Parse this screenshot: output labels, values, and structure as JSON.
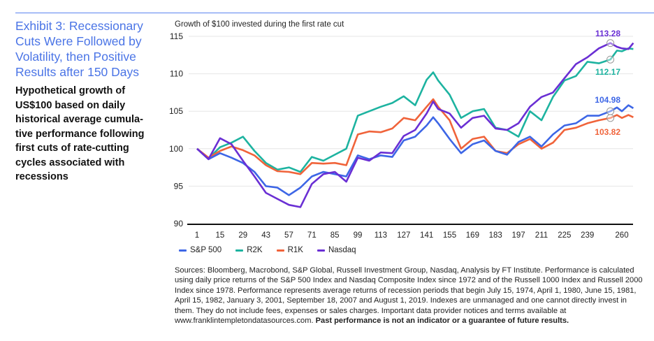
{
  "header": {
    "title": "Exhibit 3: Recessionary Cuts Were Followed by Volatility, then Positive Results after 150 Days",
    "subtitle": "Hypothetical growth of US$100 based on daily historical average cumula-tive performance following first cuts of rate-cutting cycles associated with recessions"
  },
  "chart_data": {
    "type": "line",
    "title": "Growth of $100 invested during the first rate cut",
    "xlabel": "",
    "ylabel": "",
    "ylim": [
      90,
      115
    ],
    "yticks": [
      "90",
      "95",
      "100",
      "105",
      "110",
      "115"
    ],
    "xticks": [
      "1",
      "15",
      "29",
      "43",
      "57",
      "71",
      "85",
      "99",
      "113",
      "127",
      "141",
      "155",
      "169",
      "183",
      "197",
      "211",
      "225",
      "239",
      "260"
    ],
    "xtick_values": [
      1,
      15,
      29,
      43,
      57,
      71,
      85,
      99,
      113,
      127,
      141,
      155,
      169,
      183,
      197,
      211,
      225,
      239,
      260
    ],
    "grid": "horizontal",
    "legend_position": "bottom-left",
    "x": [
      1,
      8,
      15,
      22,
      29,
      36,
      43,
      50,
      57,
      64,
      71,
      78,
      85,
      92,
      99,
      106,
      113,
      120,
      127,
      134,
      141,
      145,
      148,
      155,
      162,
      169,
      176,
      183,
      190,
      197,
      204,
      211,
      218,
      225,
      232,
      239,
      246,
      253,
      257,
      260,
      264,
      267
    ],
    "series": [
      {
        "name": "S&P 500",
        "color": "#3d66e6",
        "end_label": "104.98",
        "values": [
          100,
          98.6,
          99.4,
          98.8,
          98.1,
          96.9,
          95,
          94.8,
          93.8,
          94.8,
          96.3,
          96.9,
          96.6,
          96.3,
          99.1,
          98.6,
          99.1,
          98.9,
          101.1,
          101.6,
          103.1,
          104.2,
          103.4,
          101.3,
          99.4,
          100.6,
          101.1,
          99.7,
          99.2,
          100.9,
          101.6,
          100.3,
          101.9,
          103.1,
          103.4,
          104.4,
          104.4,
          105,
          105.5,
          105,
          105.8,
          105.4
        ]
      },
      {
        "name": "R2K",
        "color": "#1db3a0",
        "end_label": "112.17",
        "values": [
          100,
          98.7,
          100.2,
          100.8,
          101.6,
          99.7,
          98.1,
          97.2,
          97.5,
          96.9,
          98.9,
          98.4,
          99.2,
          100,
          104.4,
          105,
          105.6,
          106.1,
          107,
          105.8,
          109.2,
          110.2,
          109.1,
          107.2,
          104.1,
          105,
          105.3,
          102.8,
          102.5,
          101.6,
          105,
          103.8,
          106.9,
          109.1,
          109.7,
          111.6,
          111.4,
          111.9,
          113.1,
          113,
          113.4,
          113.3
        ]
      },
      {
        "name": "R1K",
        "color": "#f0633a",
        "end_label": "103.82",
        "values": [
          100,
          98.8,
          99.7,
          100.3,
          99.8,
          99.1,
          97.8,
          97,
          96.9,
          96.6,
          98.1,
          98,
          98.1,
          97.8,
          101.9,
          102.3,
          102.2,
          102.7,
          104.1,
          103.8,
          105.6,
          106.6,
          105.6,
          103.8,
          100,
          101.3,
          101.6,
          99.7,
          99.4,
          100.6,
          101.3,
          100,
          100.8,
          102.5,
          102.8,
          103.4,
          103.8,
          104.1,
          104.5,
          104.1,
          104.5,
          104.2
        ]
      },
      {
        "name": "Nasdaq",
        "color": "#6a2fd4",
        "end_label": "113.28",
        "values": [
          100,
          98.6,
          101.4,
          100.6,
          98.4,
          96.3,
          94.1,
          93.3,
          92.5,
          92.2,
          95.3,
          96.6,
          96.9,
          95.6,
          98.8,
          98.4,
          99.5,
          99.4,
          101.7,
          102.5,
          104.7,
          106.3,
          105.3,
          104.7,
          102.8,
          104.1,
          104.4,
          102.7,
          102.5,
          103.4,
          105.6,
          106.9,
          107.5,
          109.4,
          111.3,
          112.2,
          113.4,
          114.1,
          113.6,
          113.4,
          113.3,
          114.1
        ]
      }
    ]
  },
  "sources": {
    "text": "Sources: Bloomberg, Macrobond, S&P Global, Russell Investment Group, Nasdaq, Analysis by FT Institute. Performance is calculated using daily price returns of the S&P 500 Index and Nasdaq Composite Index since 1972 and of the Russell 1000 Index and Russell 2000 Index since 1978. Performance represents average returns of recession periods that begin July 15, 1974, April 1, 1980, June 15, 1981, April 15, 1982, January 3, 2001, September 18, 2007 and August 1, 2019. Indexes are unmanaged and one cannot directly invest in them. They do not include fees, expenses or sales charges. Important data provider notices and terms available at www.franklintempletondatasources.com. ",
    "bold": "Past performance is not an indicator or a guarantee of future results."
  }
}
